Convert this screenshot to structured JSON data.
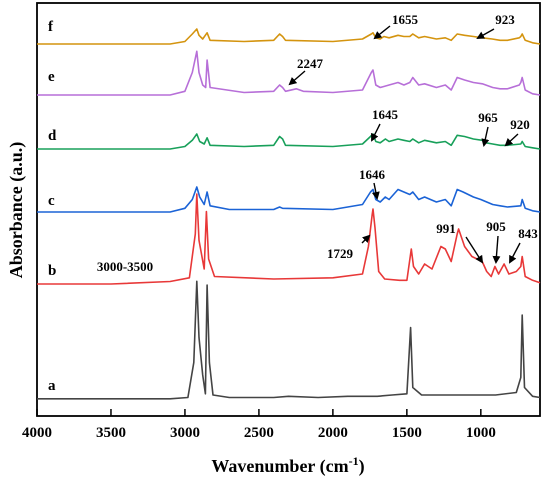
{
  "chart_data": {
    "type": "line",
    "title": "",
    "xlabel": "Wavenumber (cm",
    "xlabel_sup": "-1",
    "xlabel_close": ")",
    "ylabel": "Absorbance (a.u.)",
    "xlim": [
      4000,
      600
    ],
    "x_reversed": true,
    "y_ticks_shown": false,
    "x_ticks": [
      4000,
      3500,
      3000,
      2500,
      2000,
      1500,
      1000
    ],
    "x_tick_labels": [
      "4000",
      "3500",
      "3000",
      "2500",
      "2000",
      "1500",
      "1000"
    ],
    "grid": false,
    "legend": "none",
    "series": [
      {
        "name": "a",
        "color": "#444444",
        "offset": 0,
        "points": [
          [
            4000,
            1
          ],
          [
            3100,
            1
          ],
          [
            2980,
            2
          ],
          [
            2940,
            30
          ],
          [
            2920,
            95
          ],
          [
            2905,
            50
          ],
          [
            2880,
            20
          ],
          [
            2862,
            5
          ],
          [
            2850,
            92
          ],
          [
            2835,
            30
          ],
          [
            2810,
            4
          ],
          [
            2700,
            2
          ],
          [
            2400,
            2
          ],
          [
            2300,
            3
          ],
          [
            2100,
            2
          ],
          [
            1900,
            3
          ],
          [
            1700,
            3
          ],
          [
            1600,
            4
          ],
          [
            1500,
            5
          ],
          [
            1475,
            58
          ],
          [
            1460,
            10
          ],
          [
            1400,
            4
          ],
          [
            1100,
            4
          ],
          [
            900,
            4
          ],
          [
            760,
            6
          ],
          [
            730,
            18
          ],
          [
            720,
            68
          ],
          [
            705,
            10
          ],
          [
            650,
            3
          ],
          [
            600,
            2
          ]
        ]
      },
      {
        "name": "b",
        "color": "#e83838",
        "offset": 1,
        "points": [
          [
            4000,
            0
          ],
          [
            3500,
            0
          ],
          [
            3100,
            2
          ],
          [
            2970,
            5
          ],
          [
            2930,
            40
          ],
          [
            2920,
            72
          ],
          [
            2905,
            35
          ],
          [
            2870,
            12
          ],
          [
            2855,
            58
          ],
          [
            2840,
            20
          ],
          [
            2800,
            6
          ],
          [
            2400,
            4
          ],
          [
            2000,
            5
          ],
          [
            1800,
            8
          ],
          [
            1760,
            30
          ],
          [
            1735,
            55
          ],
          [
            1729,
            60
          ],
          [
            1715,
            45
          ],
          [
            1690,
            10
          ],
          [
            1650,
            4
          ],
          [
            1550,
            3
          ],
          [
            1500,
            3
          ],
          [
            1470,
            28
          ],
          [
            1455,
            14
          ],
          [
            1420,
            8
          ],
          [
            1380,
            16
          ],
          [
            1330,
            12
          ],
          [
            1270,
            30
          ],
          [
            1240,
            28
          ],
          [
            1200,
            18
          ],
          [
            1160,
            40
          ],
          [
            1150,
            44
          ],
          [
            1110,
            30
          ],
          [
            1060,
            22
          ],
          [
            991,
            18
          ],
          [
            960,
            10
          ],
          [
            930,
            6
          ],
          [
            905,
            14
          ],
          [
            880,
            8
          ],
          [
            843,
            16
          ],
          [
            810,
            8
          ],
          [
            760,
            10
          ],
          [
            730,
            14
          ],
          [
            720,
            22
          ],
          [
            700,
            6
          ],
          [
            650,
            3
          ],
          [
            600,
            1
          ]
        ]
      },
      {
        "name": "c",
        "color": "#1b63d6",
        "offset": 2,
        "points": [
          [
            4000,
            0
          ],
          [
            3100,
            0
          ],
          [
            3000,
            3
          ],
          [
            2950,
            10
          ],
          [
            2920,
            20
          ],
          [
            2900,
            12
          ],
          [
            2870,
            6
          ],
          [
            2850,
            16
          ],
          [
            2830,
            5
          ],
          [
            2700,
            2
          ],
          [
            2400,
            2
          ],
          [
            2360,
            4
          ],
          [
            2340,
            3
          ],
          [
            2000,
            2
          ],
          [
            1800,
            6
          ],
          [
            1746,
            16
          ],
          [
            1729,
            18
          ],
          [
            1710,
            10
          ],
          [
            1680,
            8
          ],
          [
            1646,
            12
          ],
          [
            1620,
            10
          ],
          [
            1560,
            18
          ],
          [
            1520,
            16
          ],
          [
            1480,
            14
          ],
          [
            1460,
            16
          ],
          [
            1420,
            10
          ],
          [
            1380,
            12
          ],
          [
            1300,
            8
          ],
          [
            1240,
            10
          ],
          [
            1200,
            5
          ],
          [
            1160,
            18
          ],
          [
            1120,
            16
          ],
          [
            1050,
            12
          ],
          [
            1000,
            10
          ],
          [
            920,
            6
          ],
          [
            870,
            5
          ],
          [
            820,
            4
          ],
          [
            730,
            5
          ],
          [
            720,
            10
          ],
          [
            700,
            3
          ],
          [
            650,
            1
          ],
          [
            600,
            0
          ]
        ]
      },
      {
        "name": "d",
        "color": "#18a05a",
        "offset": 3,
        "points": [
          [
            4000,
            0
          ],
          [
            3100,
            0
          ],
          [
            3000,
            2
          ],
          [
            2950,
            7
          ],
          [
            2920,
            12
          ],
          [
            2900,
            6
          ],
          [
            2870,
            4
          ],
          [
            2850,
            9
          ],
          [
            2830,
            3
          ],
          [
            2600,
            2
          ],
          [
            2400,
            3
          ],
          [
            2360,
            10
          ],
          [
            2340,
            8
          ],
          [
            2320,
            3
          ],
          [
            2000,
            2
          ],
          [
            1800,
            4
          ],
          [
            1746,
            10
          ],
          [
            1729,
            12
          ],
          [
            1710,
            6
          ],
          [
            1680,
            5
          ],
          [
            1645,
            8
          ],
          [
            1620,
            6
          ],
          [
            1560,
            8
          ],
          [
            1520,
            7
          ],
          [
            1480,
            6
          ],
          [
            1460,
            8
          ],
          [
            1420,
            5
          ],
          [
            1380,
            7
          ],
          [
            1300,
            5
          ],
          [
            1240,
            6
          ],
          [
            1200,
            3
          ],
          [
            1160,
            11
          ],
          [
            1110,
            10
          ],
          [
            1050,
            8
          ],
          [
            990,
            7
          ],
          [
            965,
            5
          ],
          [
            920,
            4
          ],
          [
            870,
            3
          ],
          [
            820,
            3
          ],
          [
            730,
            4
          ],
          [
            720,
            6
          ],
          [
            700,
            2
          ],
          [
            650,
            1
          ],
          [
            600,
            0
          ]
        ]
      },
      {
        "name": "e",
        "color": "#b76fd8",
        "offset": 4,
        "points": [
          [
            4000,
            0
          ],
          [
            3100,
            0
          ],
          [
            3000,
            3
          ],
          [
            2950,
            18
          ],
          [
            2920,
            35
          ],
          [
            2905,
            18
          ],
          [
            2880,
            8
          ],
          [
            2860,
            6
          ],
          [
            2850,
            28
          ],
          [
            2830,
            6
          ],
          [
            2600,
            2
          ],
          [
            2400,
            3
          ],
          [
            2360,
            8
          ],
          [
            2340,
            6
          ],
          [
            2320,
            3
          ],
          [
            2247,
            5
          ],
          [
            2200,
            3
          ],
          [
            2000,
            2
          ],
          [
            1800,
            4
          ],
          [
            1740,
            18
          ],
          [
            1729,
            20
          ],
          [
            1710,
            8
          ],
          [
            1680,
            6
          ],
          [
            1620,
            8
          ],
          [
            1560,
            10
          ],
          [
            1520,
            8
          ],
          [
            1480,
            10
          ],
          [
            1460,
            14
          ],
          [
            1420,
            8
          ],
          [
            1380,
            9
          ],
          [
            1300,
            6
          ],
          [
            1240,
            8
          ],
          [
            1200,
            4
          ],
          [
            1160,
            14
          ],
          [
            1110,
            12
          ],
          [
            1050,
            10
          ],
          [
            990,
            9
          ],
          [
            920,
            6
          ],
          [
            870,
            5
          ],
          [
            820,
            5
          ],
          [
            740,
            8
          ],
          [
            730,
            10
          ],
          [
            720,
            14
          ],
          [
            700,
            4
          ],
          [
            650,
            1
          ],
          [
            600,
            0
          ]
        ]
      },
      {
        "name": "f",
        "color": "#d4940f",
        "offset": 5,
        "points": [
          [
            4000,
            0
          ],
          [
            3100,
            0
          ],
          [
            3000,
            2
          ],
          [
            2950,
            8
          ],
          [
            2920,
            12
          ],
          [
            2905,
            7
          ],
          [
            2880,
            4
          ],
          [
            2850,
            9
          ],
          [
            2830,
            3
          ],
          [
            2600,
            2
          ],
          [
            2400,
            3
          ],
          [
            2360,
            8
          ],
          [
            2340,
            6
          ],
          [
            2320,
            3
          ],
          [
            2000,
            2
          ],
          [
            1800,
            4
          ],
          [
            1740,
            8
          ],
          [
            1729,
            9
          ],
          [
            1710,
            5
          ],
          [
            1680,
            4
          ],
          [
            1655,
            6
          ],
          [
            1620,
            5
          ],
          [
            1560,
            7
          ],
          [
            1520,
            6
          ],
          [
            1480,
            6
          ],
          [
            1460,
            8
          ],
          [
            1420,
            5
          ],
          [
            1380,
            6
          ],
          [
            1300,
            4
          ],
          [
            1240,
            5
          ],
          [
            1200,
            3
          ],
          [
            1160,
            8
          ],
          [
            1110,
            7
          ],
          [
            1050,
            6
          ],
          [
            990,
            5
          ],
          [
            923,
            4
          ],
          [
            870,
            3
          ],
          [
            820,
            3
          ],
          [
            740,
            5
          ],
          [
            730,
            6
          ],
          [
            720,
            8
          ],
          [
            700,
            3
          ],
          [
            650,
            1
          ],
          [
            600,
            0
          ]
        ]
      }
    ],
    "annotations": [
      {
        "text": "1655",
        "series": "f"
      },
      {
        "text": "923",
        "series": "f"
      },
      {
        "text": "2247",
        "series": "e"
      },
      {
        "text": "1645",
        "series": "d"
      },
      {
        "text": "965",
        "series": "d"
      },
      {
        "text": "920",
        "series": "d"
      },
      {
        "text": "1646",
        "series": "c"
      },
      {
        "text": "3000-3500",
        "series": "b"
      },
      {
        "text": "1729",
        "series": "b"
      },
      {
        "text": "991",
        "series": "b"
      },
      {
        "text": "905",
        "series": "b"
      },
      {
        "text": "843",
        "series": "b"
      }
    ]
  }
}
